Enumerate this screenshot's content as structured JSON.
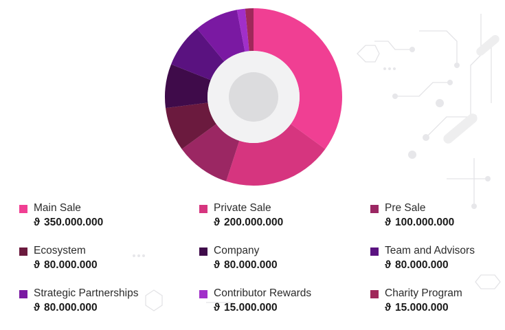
{
  "chart_data": {
    "type": "pie",
    "style": "donut",
    "legend_position": "bottom",
    "currency_symbol": "ϑ",
    "categories": [
      "Main Sale",
      "Private Sale",
      "Pre Sale",
      "Ecosystem",
      "Company",
      "Team and Advisors",
      "Strategic Partnerships",
      "Contributor Rewards",
      "Charity Program"
    ],
    "values": [
      350000000,
      200000000,
      100000000,
      80000000,
      80000000,
      80000000,
      80000000,
      15000000,
      15000000
    ],
    "value_labels": [
      "350.000.000",
      "200.000.000",
      "100.000.000",
      "80.000.000",
      "80.000.000",
      "80.000.000",
      "80.000.000",
      "15.000.000",
      "15.000.000"
    ],
    "colors": [
      "#f03f93",
      "#d6357f",
      "#9b2763",
      "#6b1a3e",
      "#3f0b4a",
      "#5a1280",
      "#7a19a2",
      "#a12fc9",
      "#a0285a"
    ]
  }
}
